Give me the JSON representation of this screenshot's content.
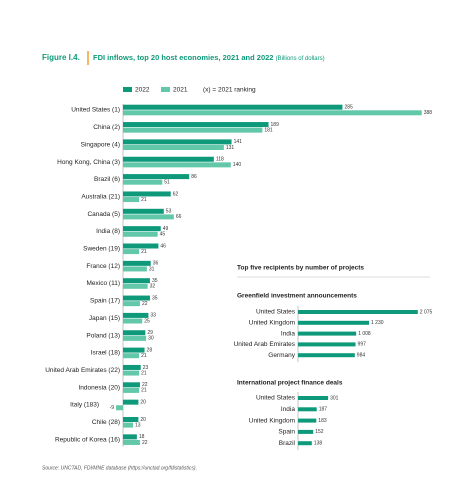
{
  "figure_label": "Figure I.4.",
  "title": "FDI inflows, top 20 host economies, 2021 and 2022",
  "subtitle": "(Billions of dollars)",
  "legend_note": "(x) = 2021 ranking",
  "panel_title": "Top five recipients by number of projects",
  "source": "Source: UNCTAD, FDI/MNE database (https://unctad.org/fdistatistics).",
  "chart_data": [
    {
      "type": "hbar",
      "categories": [
        "United States (1)",
        "China (2)",
        "Singapore (4)",
        "Hong Kong, China (3)",
        "Brazil (6)",
        "Australia (21)",
        "Canada (5)",
        "India (8)",
        "Sweden (19)",
        "France (12)",
        "Mexico (11)",
        "Spain (17)",
        "Japan (15)",
        "Poland (13)",
        "Israel (18)",
        "United Arab Emirates (22)",
        "Indonesia (20)",
        "Italy (183)",
        "Chile (28)",
        "Republic of Korea (16)"
      ],
      "series": [
        {
          "name": "2022",
          "color": "#0e9a7a",
          "values": [
            285,
            189,
            141,
            118,
            86,
            62,
            53,
            49,
            46,
            36,
            35,
            35,
            33,
            29,
            28,
            23,
            22,
            20,
            20,
            18
          ]
        },
        {
          "name": "2021",
          "color": "#63c7a9",
          "values": [
            388,
            181,
            131,
            140,
            51,
            21,
            66,
            45,
            21,
            31,
            32,
            22,
            25,
            30,
            21,
            21,
            21,
            -9,
            13,
            22
          ]
        }
      ],
      "xlim": [
        -20,
        400
      ]
    },
    {
      "type": "hbar",
      "title": "Greenfield investment announcements",
      "categories": [
        "United States",
        "United Kingdom",
        "India",
        "United Arab Emirates",
        "Germany"
      ],
      "values": [
        2075,
        1230,
        1008,
        997,
        984
      ],
      "value_labels": [
        "2 075",
        "1 230",
        "1 008",
        "997",
        "984"
      ],
      "color": "#0e9a7a",
      "xlim": [
        0,
        2200
      ]
    },
    {
      "type": "hbar",
      "title": "International project finance deals",
      "categories": [
        "United States",
        "India",
        "United Kingdom",
        "Spain",
        "Brazil"
      ],
      "values": [
        301,
        187,
        183,
        152,
        138
      ],
      "color": "#0e9a7a",
      "xlim": [
        0,
        1200
      ]
    }
  ]
}
